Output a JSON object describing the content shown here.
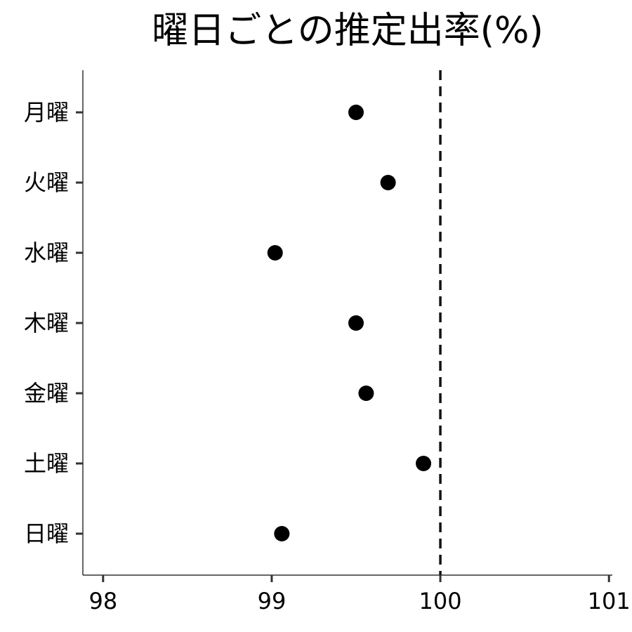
{
  "chart_data": {
    "type": "scatter",
    "title": "曜日ごとの推定出率(%)",
    "xlabel": "",
    "ylabel": "",
    "xlim": [
      97.88,
      101.02
    ],
    "x_ticks": [
      98,
      99,
      100,
      101
    ],
    "categories": [
      "月曜",
      "火曜",
      "水曜",
      "木曜",
      "金曜",
      "土曜",
      "日曜"
    ],
    "values": [
      99.5,
      99.69,
      99.02,
      99.5,
      99.56,
      99.9,
      99.06
    ],
    "reference_line": {
      "x": 100,
      "style": "dashed"
    },
    "grid": false,
    "colors": {
      "points": "#000000",
      "axis": "#333333",
      "reference": "#111111"
    }
  }
}
